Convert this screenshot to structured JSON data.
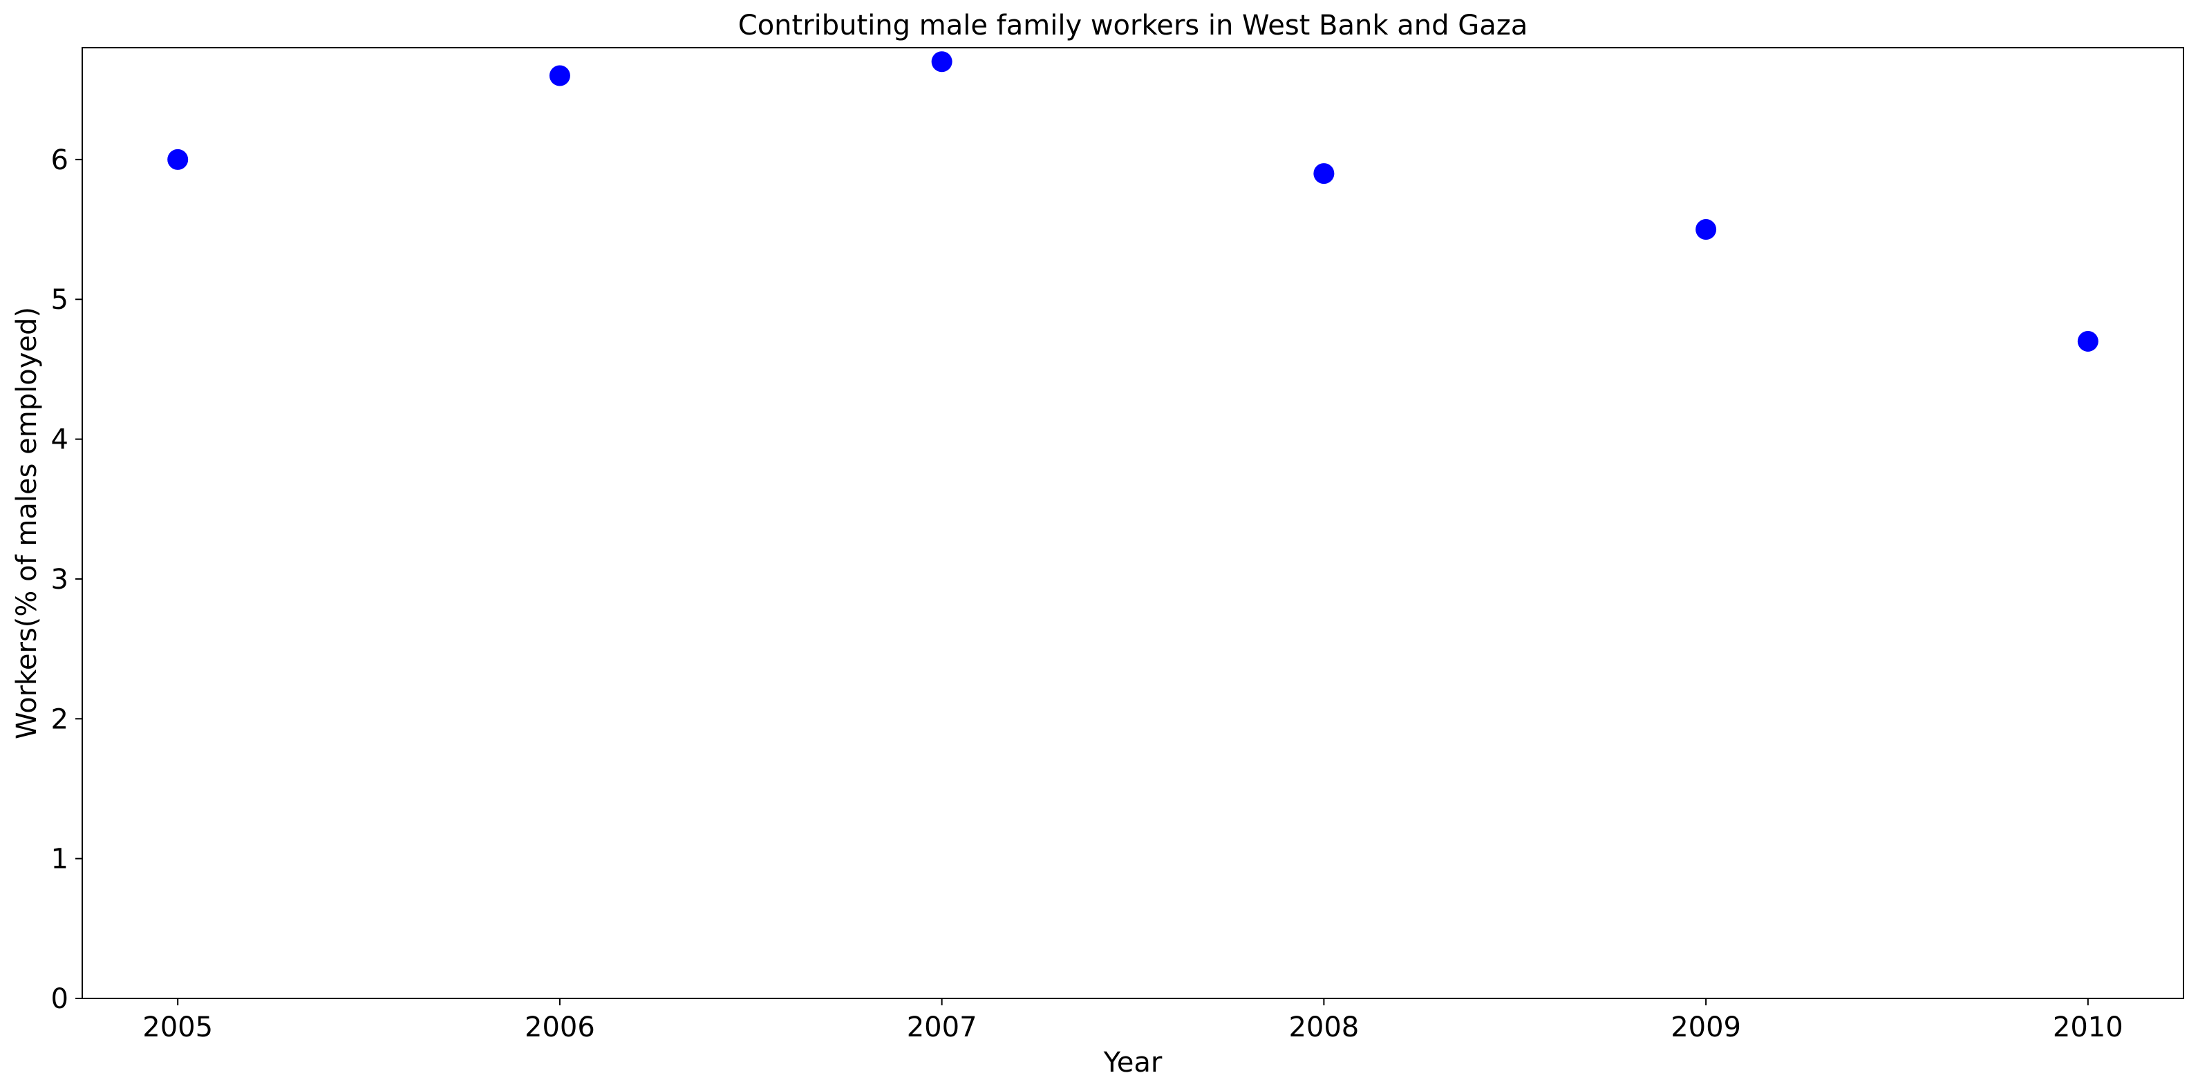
{
  "chart_data": {
    "type": "scatter",
    "title": "Contributing male family workers in West Bank and Gaza",
    "xlabel": "Year",
    "ylabel": "Workers(% of males employed)",
    "x": [
      2005,
      2006,
      2007,
      2008,
      2009,
      2010
    ],
    "y": [
      6.0,
      6.6,
      6.7,
      5.9,
      5.5,
      4.7
    ],
    "x_ticks": [
      "2005",
      "2006",
      "2007",
      "2008",
      "2009",
      "2010"
    ],
    "y_ticks": [
      "0",
      "1",
      "2",
      "3",
      "4",
      "5",
      "6"
    ],
    "ylim": [
      0,
      6.8
    ],
    "xlim": [
      2004.75,
      2010.25
    ],
    "grid": false,
    "marker_color": "#0000ff"
  }
}
